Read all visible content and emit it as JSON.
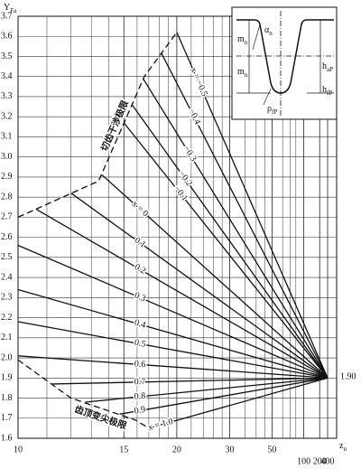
{
  "chart_data": {
    "type": "line",
    "ylabel": {
      "main": "Y",
      "sub": "Fa"
    },
    "xlabel": {
      "main": "z",
      "sub": "n"
    },
    "xscale": "reciprocal",
    "xlim": [
      10,
      400
    ],
    "ylim": [
      1.6,
      3.7
    ],
    "xticks": [
      10,
      15,
      20,
      30,
      50,
      100,
      200,
      400
    ],
    "xminor": [
      11,
      12,
      13,
      14,
      16,
      17,
      18,
      19,
      22,
      24,
      26,
      28,
      35,
      40,
      45,
      60,
      70,
      80
    ],
    "yticks": [
      1.6,
      1.7,
      1.8,
      1.9,
      {
        "value": 2.0,
        "label": "2.0"
      },
      2.1,
      2.2,
      2.3,
      2.4,
      2.5,
      2.6,
      2.7,
      2.8,
      2.9,
      {
        "value": 3.0,
        "label": "3.0"
      },
      3.1,
      3.2,
      3.3,
      3.4,
      3.5,
      3.6,
      3.7
    ],
    "grid": true,
    "color": "#111111",
    "convergence_label": "1.90",
    "series": [
      {
        "name": "x = −0.5",
        "x": [
          20,
          400
        ],
        "values": [
          3.62,
          1.9
        ]
      },
      {
        "name": "−0.4",
        "x": [
          18.2,
          400
        ],
        "values": [
          3.52,
          1.9
        ]
      },
      {
        "name": "−0.3",
        "x": [
          16.5,
          400
        ],
        "values": [
          3.39,
          1.9
        ]
      },
      {
        "name": "−0.2",
        "x": [
          15.6,
          400
        ],
        "values": [
          3.26,
          1.9
        ]
      },
      {
        "name": "−0.1",
        "x": [
          15.0,
          400
        ],
        "values": [
          3.17,
          1.9
        ]
      },
      {
        "name": "x = 0",
        "x": [
          13.6,
          400
        ],
        "values": [
          2.91,
          1.9
        ]
      },
      {
        "name": "0.1",
        "x": [
          12.0,
          400
        ],
        "values": [
          2.82,
          1.9
        ]
      },
      {
        "name": "0.2",
        "x": [
          10.6,
          400
        ],
        "values": [
          2.74,
          1.9
        ]
      },
      {
        "name": "0.3",
        "x": [
          10,
          400
        ],
        "values": [
          2.56,
          1.9
        ]
      },
      {
        "name": "0.4",
        "x": [
          10,
          400
        ],
        "values": [
          2.34,
          1.9
        ]
      },
      {
        "name": "0.5",
        "x": [
          10,
          400
        ],
        "values": [
          2.18,
          1.9
        ]
      },
      {
        "name": "0.6",
        "x": [
          10,
          400
        ],
        "values": [
          2.01,
          1.9
        ]
      },
      {
        "name": "0.7",
        "x": [
          11.2,
          400
        ],
        "values": [
          1.87,
          1.9
        ]
      },
      {
        "name": "0.8",
        "x": [
          12.7,
          400
        ],
        "values": [
          1.78,
          1.9
        ]
      },
      {
        "name": "0.9",
        "x": [
          14.7,
          400
        ],
        "values": [
          1.72,
          1.9
        ]
      },
      {
        "name": "x = 1.0",
        "x": [
          17,
          400
        ],
        "values": [
          1.65,
          1.9
        ]
      }
    ],
    "limits": [
      {
        "name": "切齿干涉极限",
        "x": [
          10,
          13.4,
          16.6,
          20
        ],
        "values": [
          2.7,
          2.88,
          3.4,
          3.62
        ]
      },
      {
        "name": "齿顶变尖极限",
        "x": [
          10,
          12,
          15.9,
          17
        ],
        "values": [
          1.99,
          1.8,
          1.69,
          1.65
        ]
      }
    ],
    "inset_labels": [
      {
        "main": "α",
        "sub": "n"
      },
      {
        "main": "m",
        "sub": "n"
      },
      {
        "main": "m",
        "sub": "n"
      },
      {
        "main": "h",
        "sub": "aP"
      },
      {
        "main": "h",
        "sub": "fP"
      },
      {
        "main": "ρ",
        "sub": "fP"
      }
    ]
  }
}
